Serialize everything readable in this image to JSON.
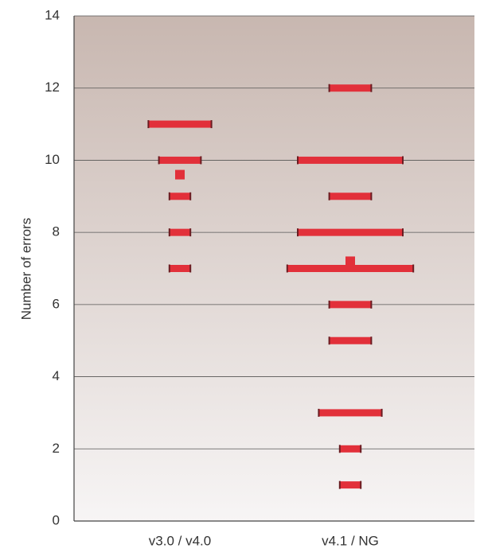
{
  "chart_data": {
    "type": "strip",
    "y_label": "Number of errors",
    "ylim": [
      0,
      14
    ],
    "yticks": [
      0,
      2,
      4,
      6,
      8,
      10,
      12,
      14
    ],
    "grid": true,
    "color": "#e2303a",
    "groups": [
      {
        "category": "v3.0 / v4.0",
        "levels": [
          11,
          10,
          9,
          8,
          7
        ],
        "counts": [
          6,
          4,
          2,
          2,
          2
        ],
        "mean": 9.6
      },
      {
        "category": "v4.1 / NG",
        "levels": [
          12,
          10,
          9,
          8,
          7,
          6,
          5,
          3,
          2,
          1
        ],
        "counts": [
          4,
          10,
          4,
          10,
          12,
          4,
          4,
          6,
          2,
          2
        ],
        "mean": 7.2
      }
    ]
  }
}
